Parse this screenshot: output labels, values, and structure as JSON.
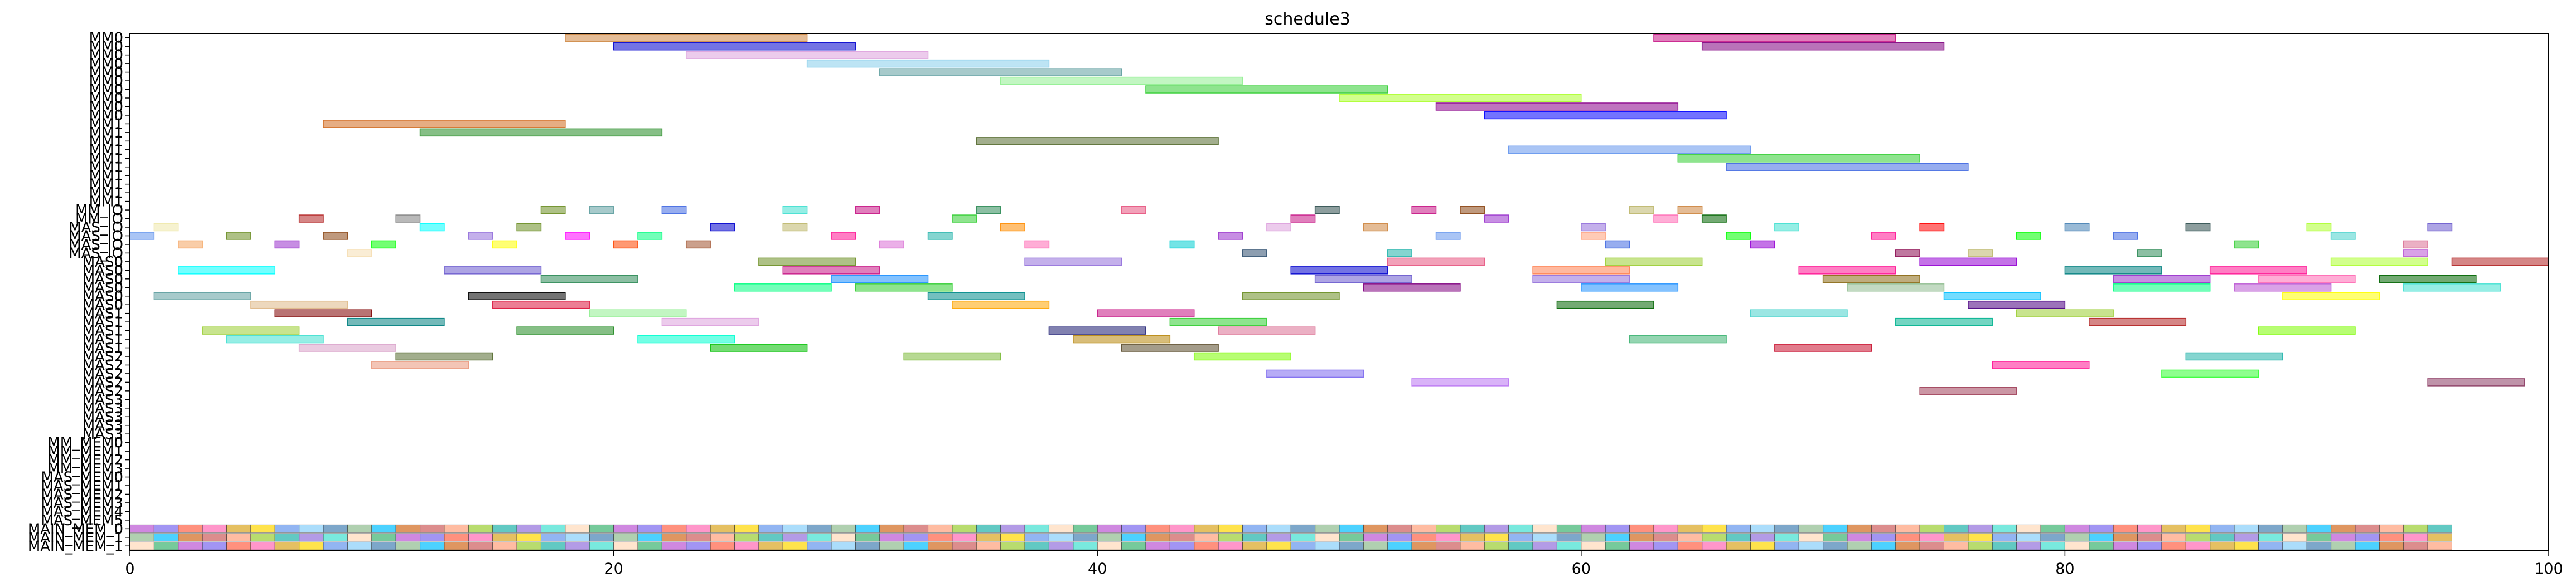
{
  "chart_data": {
    "type": "gantt",
    "title": "schedule3",
    "xlabel": "",
    "ylabel": "",
    "xlim": [
      0,
      100
    ],
    "x_ticks": [
      0,
      20,
      40,
      60,
      80,
      100
    ],
    "grid": false,
    "rows": [
      "MM0",
      "MM0",
      "MM0",
      "MM0",
      "MM0",
      "MM0",
      "MM0",
      "MM0",
      "MM0",
      "MM0",
      "MM1",
      "MM1",
      "MM1",
      "MM1",
      "MM1",
      "MM1",
      "MM1",
      "MM1",
      "MM1",
      "MM1",
      "MM_IO",
      "MM_IO",
      "MAS_IO",
      "MAS_IO",
      "MAS_IO",
      "MAS_IO",
      "MAS0",
      "MAS0",
      "MAS0",
      "MAS0",
      "MAS0",
      "MAS0",
      "MAS1",
      "MAS1",
      "MAS1",
      "MAS1",
      "MAS1",
      "MAS2",
      "MAS2",
      "MAS2",
      "MAS2",
      "MAS2",
      "MAS3",
      "MAS3",
      "MAS3",
      "MAS3",
      "MAS3",
      "MM_MEM0",
      "MM_MEM1",
      "MM_MEM2",
      "MM_MEM3",
      "MAS_MEM0",
      "MAS_MEM1",
      "MAS_MEM2",
      "MAS_MEM3",
      "MAS_MEM4",
      "MAS_MEM5",
      "MAIN_MEM_0",
      "MAIN_MEM_1",
      "MAIN_MEM_1"
    ],
    "tasks": [
      {
        "row": 0,
        "start": 18,
        "end": 28,
        "color": "#cd853f"
      },
      {
        "row": 0,
        "start": 63,
        "end": 73,
        "color": "#c71585"
      },
      {
        "row": 1,
        "start": 20,
        "end": 30,
        "color": "#0000cd"
      },
      {
        "row": 1,
        "start": 65,
        "end": 75,
        "color": "#800080"
      },
      {
        "row": 2,
        "start": 23,
        "end": 33,
        "color": "#dda0dd"
      },
      {
        "row": 3,
        "start": 28,
        "end": 38,
        "color": "#87ceeb"
      },
      {
        "row": 4,
        "start": 31,
        "end": 41,
        "color": "#5f9ea0"
      },
      {
        "row": 5,
        "start": 36,
        "end": 46,
        "color": "#90ee90"
      },
      {
        "row": 6,
        "start": 42,
        "end": 52,
        "color": "#32cd32"
      },
      {
        "row": 7,
        "start": 50,
        "end": 60,
        "color": "#adff2f"
      },
      {
        "row": 8,
        "start": 54,
        "end": 64,
        "color": "#8b008b"
      },
      {
        "row": 9,
        "start": 56,
        "end": 66,
        "color": "#0000ff"
      },
      {
        "row": 10,
        "start": 8,
        "end": 18,
        "color": "#d2691e"
      },
      {
        "row": 11,
        "start": 12,
        "end": 22,
        "color": "#228b22"
      },
      {
        "row": 12,
        "start": 35,
        "end": 45,
        "color": "#556b2f"
      },
      {
        "row": 13,
        "start": 57,
        "end": 67,
        "color": "#6495ed"
      },
      {
        "row": 14,
        "start": 64,
        "end": 74,
        "color": "#32cd32"
      },
      {
        "row": 15,
        "start": 66,
        "end": 76,
        "color": "#4169e1"
      },
      {
        "row": 20,
        "start": 17,
        "end": 18,
        "color": "#6b8e23"
      },
      {
        "row": 20,
        "start": 19,
        "end": 20,
        "color": "#5f9ea0"
      },
      {
        "row": 20,
        "start": 22,
        "end": 23,
        "color": "#4169e1"
      },
      {
        "row": 20,
        "start": 27,
        "end": 28,
        "color": "#40e0d0"
      },
      {
        "row": 20,
        "start": 30,
        "end": 31,
        "color": "#c71585"
      },
      {
        "row": 20,
        "start": 35,
        "end": 36,
        "color": "#2e8b57"
      },
      {
        "row": 20,
        "start": 41,
        "end": 42,
        "color": "#e75480"
      },
      {
        "row": 20,
        "start": 49,
        "end": 50,
        "color": "#2f4f4f"
      },
      {
        "row": 20,
        "start": 53,
        "end": 54,
        "color": "#c71585"
      },
      {
        "row": 20,
        "start": 55,
        "end": 56,
        "color": "#8b4513"
      },
      {
        "row": 20,
        "start": 62,
        "end": 63,
        "color": "#bdb76b"
      },
      {
        "row": 20,
        "start": 64,
        "end": 65,
        "color": "#cd853f"
      },
      {
        "row": 21,
        "start": 7,
        "end": 8,
        "color": "#b22222"
      },
      {
        "row": 21,
        "start": 11,
        "end": 12,
        "color": "#808080"
      },
      {
        "row": 21,
        "start": 34,
        "end": 35,
        "color": "#32cd32"
      },
      {
        "row": 21,
        "start": 48,
        "end": 49,
        "color": "#c71585"
      },
      {
        "row": 21,
        "start": 56,
        "end": 57,
        "color": "#9932cc"
      },
      {
        "row": 21,
        "start": 63,
        "end": 64,
        "color": "#ff69b4"
      },
      {
        "row": 21,
        "start": 65,
        "end": 66,
        "color": "#006400"
      },
      {
        "row": 22,
        "start": 1,
        "end": 2,
        "color": "#eee8aa"
      },
      {
        "row": 22,
        "start": 12,
        "end": 13,
        "color": "#00ffff"
      },
      {
        "row": 22,
        "start": 16,
        "end": 17,
        "color": "#6b8e23"
      },
      {
        "row": 22,
        "start": 24,
        "end": 25,
        "color": "#0000cd"
      },
      {
        "row": 22,
        "start": 27,
        "end": 28,
        "color": "#bdb76b"
      },
      {
        "row": 22,
        "start": 36,
        "end": 37,
        "color": "#ff8c00"
      },
      {
        "row": 22,
        "start": 47,
        "end": 48,
        "color": "#dda0dd"
      },
      {
        "row": 22,
        "start": 51,
        "end": 52,
        "color": "#cd853f"
      },
      {
        "row": 22,
        "start": 60,
        "end": 61,
        "color": "#9370db"
      },
      {
        "row": 22,
        "start": 68,
        "end": 69,
        "color": "#40e0d0"
      },
      {
        "row": 22,
        "start": 74,
        "end": 75,
        "color": "#ff0000"
      },
      {
        "row": 22,
        "start": 80,
        "end": 81,
        "color": "#4682b4"
      },
      {
        "row": 22,
        "start": 85,
        "end": 86,
        "color": "#2f4f4f"
      },
      {
        "row": 22,
        "start": 90,
        "end": 91,
        "color": "#adff2f"
      },
      {
        "row": 22,
        "start": 95,
        "end": 96,
        "color": "#6a5acd"
      },
      {
        "row": 23,
        "start": 0,
        "end": 1,
        "color": "#6495ed"
      },
      {
        "row": 23,
        "start": 4,
        "end": 5,
        "color": "#6b8e23"
      },
      {
        "row": 23,
        "start": 8,
        "end": 9,
        "color": "#8b4513"
      },
      {
        "row": 23,
        "start": 14,
        "end": 15,
        "color": "#9370db"
      },
      {
        "row": 23,
        "start": 18,
        "end": 19,
        "color": "#ff00ff"
      },
      {
        "row": 23,
        "start": 21,
        "end": 22,
        "color": "#00ff7f"
      },
      {
        "row": 23,
        "start": 29,
        "end": 30,
        "color": "#ff1493"
      },
      {
        "row": 23,
        "start": 33,
        "end": 34,
        "color": "#20b2aa"
      },
      {
        "row": 23,
        "start": 45,
        "end": 46,
        "color": "#9932cc"
      },
      {
        "row": 23,
        "start": 54,
        "end": 55,
        "color": "#6495ed"
      },
      {
        "row": 23,
        "start": 60,
        "end": 61,
        "color": "#ffa07a"
      },
      {
        "row": 23,
        "start": 66,
        "end": 67,
        "color": "#00ff00"
      },
      {
        "row": 23,
        "start": 72,
        "end": 73,
        "color": "#ff1493"
      },
      {
        "row": 23,
        "start": 78,
        "end": 79,
        "color": "#00ff00"
      },
      {
        "row": 23,
        "start": 82,
        "end": 83,
        "color": "#4169e1"
      },
      {
        "row": 23,
        "start": 91,
        "end": 92,
        "color": "#48d1cc"
      },
      {
        "row": 24,
        "start": 2,
        "end": 3,
        "color": "#f4a460"
      },
      {
        "row": 24,
        "start": 6,
        "end": 7,
        "color": "#9932cc"
      },
      {
        "row": 24,
        "start": 10,
        "end": 11,
        "color": "#00ff00"
      },
      {
        "row": 24,
        "start": 15,
        "end": 16,
        "color": "#ffff00"
      },
      {
        "row": 24,
        "start": 20,
        "end": 21,
        "color": "#ff4500"
      },
      {
        "row": 24,
        "start": 23,
        "end": 24,
        "color": "#a0522d"
      },
      {
        "row": 24,
        "start": 31,
        "end": 32,
        "color": "#da70d6"
      },
      {
        "row": 24,
        "start": 37,
        "end": 38,
        "color": "#ff69b4"
      },
      {
        "row": 24,
        "start": 43,
        "end": 44,
        "color": "#00ced1"
      },
      {
        "row": 24,
        "start": 61,
        "end": 62,
        "color": "#4169e1"
      },
      {
        "row": 24,
        "start": 67,
        "end": 68,
        "color": "#9400d3"
      },
      {
        "row": 24,
        "start": 87,
        "end": 88,
        "color": "#32cd32"
      },
      {
        "row": 24,
        "start": 94,
        "end": 95,
        "color": "#db7093"
      },
      {
        "row": 25,
        "start": 9,
        "end": 10,
        "color": "#f5deb3"
      },
      {
        "row": 25,
        "start": 46,
        "end": 47,
        "color": "#2f4f6f"
      },
      {
        "row": 25,
        "start": 52,
        "end": 53,
        "color": "#20b2aa"
      },
      {
        "row": 25,
        "start": 73,
        "end": 74,
        "color": "#8b0a50"
      },
      {
        "row": 25,
        "start": 76,
        "end": 77,
        "color": "#bdb76b"
      },
      {
        "row": 25,
        "start": 83,
        "end": 84,
        "color": "#2e8b57"
      },
      {
        "row": 25,
        "start": 94,
        "end": 95,
        "color": "#ba55d3"
      },
      {
        "row": 26,
        "start": 26,
        "end": 30,
        "color": "#6b8e23"
      },
      {
        "row": 26,
        "start": 37,
        "end": 41,
        "color": "#9370db"
      },
      {
        "row": 26,
        "start": 52,
        "end": 56,
        "color": "#e75480"
      },
      {
        "row": 26,
        "start": 61,
        "end": 65,
        "color": "#9acd32"
      },
      {
        "row": 26,
        "start": 74,
        "end": 78,
        "color": "#9400d3"
      },
      {
        "row": 26,
        "start": 91,
        "end": 95,
        "color": "#adff2f"
      },
      {
        "row": 26,
        "start": 96,
        "end": 100,
        "color": "#b22222"
      },
      {
        "row": 27,
        "start": 2,
        "end": 6,
        "color": "#00ffff"
      },
      {
        "row": 27,
        "start": 13,
        "end": 17,
        "color": "#6a5acd"
      },
      {
        "row": 27,
        "start": 27,
        "end": 31,
        "color": "#c71585"
      },
      {
        "row": 27,
        "start": 48,
        "end": 52,
        "color": "#0000cd"
      },
      {
        "row": 27,
        "start": 58,
        "end": 62,
        "color": "#ff7f50"
      },
      {
        "row": 27,
        "start": 69,
        "end": 73,
        "color": "#ff1493"
      },
      {
        "row": 27,
        "start": 80,
        "end": 84,
        "color": "#008080"
      },
      {
        "row": 27,
        "start": 86,
        "end": 90,
        "color": "#ff1493"
      },
      {
        "row": 28,
        "start": 17,
        "end": 21,
        "color": "#2e8b57"
      },
      {
        "row": 28,
        "start": 29,
        "end": 33,
        "color": "#1e90ff"
      },
      {
        "row": 28,
        "start": 49,
        "end": 53,
        "color": "#6a5acd"
      },
      {
        "row": 28,
        "start": 58,
        "end": 62,
        "color": "#9370db"
      },
      {
        "row": 28,
        "start": 70,
        "end": 74,
        "color": "#8b6914"
      },
      {
        "row": 28,
        "start": 82,
        "end": 86,
        "color": "#9932cc"
      },
      {
        "row": 28,
        "start": 88,
        "end": 92,
        "color": "#ff69b4"
      },
      {
        "row": 28,
        "start": 93,
        "end": 97,
        "color": "#006400"
      },
      {
        "row": 29,
        "start": 25,
        "end": 29,
        "color": "#00ff7f"
      },
      {
        "row": 29,
        "start": 30,
        "end": 34,
        "color": "#32cd32"
      },
      {
        "row": 29,
        "start": 51,
        "end": 55,
        "color": "#800080"
      },
      {
        "row": 29,
        "start": 60,
        "end": 64,
        "color": "#1e90ff"
      },
      {
        "row": 29,
        "start": 71,
        "end": 75,
        "color": "#8fbc8f"
      },
      {
        "row": 29,
        "start": 82,
        "end": 86,
        "color": "#00ff7f"
      },
      {
        "row": 29,
        "start": 87,
        "end": 91,
        "color": "#ba55d3"
      },
      {
        "row": 29,
        "start": 94,
        "end": 98,
        "color": "#40e0d0"
      },
      {
        "row": 30,
        "start": 1,
        "end": 5,
        "color": "#5f9ea0"
      },
      {
        "row": 30,
        "start": 14,
        "end": 18,
        "color": "#000000"
      },
      {
        "row": 30,
        "start": 33,
        "end": 37,
        "color": "#008b8b"
      },
      {
        "row": 30,
        "start": 46,
        "end": 50,
        "color": "#6b8e23"
      },
      {
        "row": 30,
        "start": 75,
        "end": 79,
        "color": "#00bfff"
      },
      {
        "row": 30,
        "start": 89,
        "end": 93,
        "color": "#ffff00"
      },
      {
        "row": 31,
        "start": 5,
        "end": 9,
        "color": "#deb887"
      },
      {
        "row": 31,
        "start": 15,
        "end": 19,
        "color": "#dc143c"
      },
      {
        "row": 31,
        "start": 34,
        "end": 38,
        "color": "#ffa500"
      },
      {
        "row": 31,
        "start": 59,
        "end": 63,
        "color": "#006400"
      },
      {
        "row": 31,
        "start": 76,
        "end": 80,
        "color": "#4b0082"
      },
      {
        "row": 32,
        "start": 6,
        "end": 10,
        "color": "#800000"
      },
      {
        "row": 32,
        "start": 19,
        "end": 23,
        "color": "#90ee90"
      },
      {
        "row": 32,
        "start": 40,
        "end": 44,
        "color": "#c71585"
      },
      {
        "row": 32,
        "start": 67,
        "end": 71,
        "color": "#48d1cc"
      },
      {
        "row": 32,
        "start": 78,
        "end": 82,
        "color": "#9acd32"
      },
      {
        "row": 33,
        "start": 9,
        "end": 13,
        "color": "#008080"
      },
      {
        "row": 33,
        "start": 22,
        "end": 26,
        "color": "#dda0dd"
      },
      {
        "row": 33,
        "start": 43,
        "end": 47,
        "color": "#32cd32"
      },
      {
        "row": 33,
        "start": 73,
        "end": 77,
        "color": "#00b38f"
      },
      {
        "row": 33,
        "start": 81,
        "end": 85,
        "color": "#b22222"
      },
      {
        "row": 34,
        "start": 3,
        "end": 7,
        "color": "#9acd32"
      },
      {
        "row": 34,
        "start": 16,
        "end": 20,
        "color": "#228b22"
      },
      {
        "row": 34,
        "start": 38,
        "end": 42,
        "color": "#191970"
      },
      {
        "row": 34,
        "start": 45,
        "end": 49,
        "color": "#db7093"
      },
      {
        "row": 34,
        "start": 88,
        "end": 92,
        "color": "#7cfc00"
      },
      {
        "row": 35,
        "start": 4,
        "end": 8,
        "color": "#40e0d0"
      },
      {
        "row": 35,
        "start": 21,
        "end": 25,
        "color": "#00ffd0"
      },
      {
        "row": 35,
        "start": 39,
        "end": 43,
        "color": "#b8860b"
      },
      {
        "row": 35,
        "start": 62,
        "end": 66,
        "color": "#3cb371"
      },
      {
        "row": 36,
        "start": 7,
        "end": 11,
        "color": "#d8a0c8"
      },
      {
        "row": 36,
        "start": 24,
        "end": 28,
        "color": "#00c000"
      },
      {
        "row": 36,
        "start": 41,
        "end": 45,
        "color": "#5a4a2a"
      },
      {
        "row": 36,
        "start": 68,
        "end": 72,
        "color": "#c8102e"
      },
      {
        "row": 37,
        "start": 11,
        "end": 15,
        "color": "#556b2f"
      },
      {
        "row": 37,
        "start": 32,
        "end": 36,
        "color": "#7cba3a"
      },
      {
        "row": 37,
        "start": 44,
        "end": 48,
        "color": "#7cfc00"
      },
      {
        "row": 37,
        "start": 85,
        "end": 89,
        "color": "#20b2aa"
      },
      {
        "row": 38,
        "start": 10,
        "end": 14,
        "color": "#e9967a"
      },
      {
        "row": 38,
        "start": 77,
        "end": 81,
        "color": "#ff1493"
      },
      {
        "row": 39,
        "start": 47,
        "end": 51,
        "color": "#7b68ee"
      },
      {
        "row": 39,
        "start": 84,
        "end": 88,
        "color": "#32ff32"
      },
      {
        "row": 40,
        "start": 53,
        "end": 57,
        "color": "#ba75f3"
      },
      {
        "row": 40,
        "start": 95,
        "end": 99,
        "color": "#8b3a62"
      },
      {
        "row": 41,
        "start": 74,
        "end": 78,
        "color": "#a0405a"
      }
    ],
    "memory_rows_colors": [
      "#87cefa",
      "#00bfff",
      "#ffa07a",
      "#9370db",
      "#3cb371",
      "#ff6347",
      "#ffd700",
      "#4682b4",
      "#d2691e",
      "#9acd32",
      "#40e0d0",
      "#ba55d3",
      "#ff69b4",
      "#6495ed",
      "#8fbc8f",
      "#cd5c5c",
      "#20b2aa",
      "#ffdab9",
      "#7b68ee",
      "#daa520"
    ]
  }
}
